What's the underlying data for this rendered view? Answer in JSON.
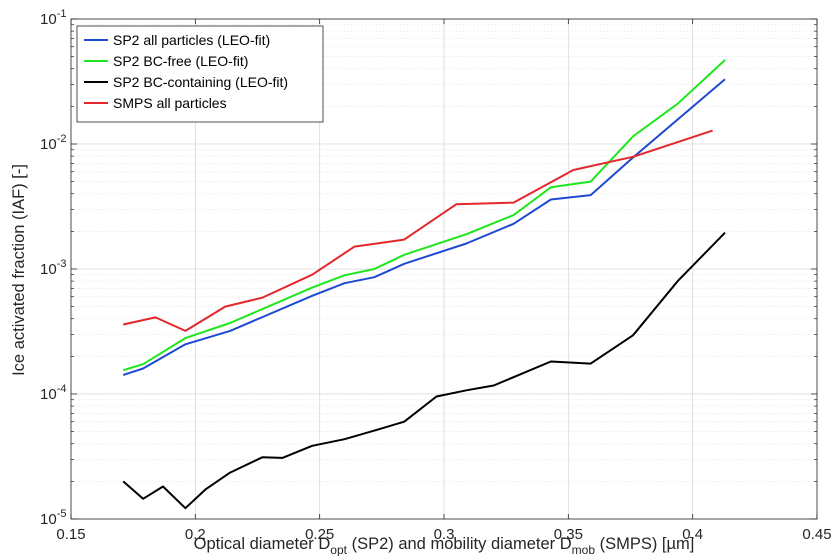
{
  "chart_data": {
    "type": "line",
    "title": "",
    "xlabel": {
      "pre": "Optical diameter D",
      "sub1": "opt",
      "mid": " (SP2) and mobility diameter D",
      "sub2": "mob",
      "post": " (SMPS) [µm]"
    },
    "ylabel": "Ice activated fraction (IAF) [-]",
    "xlim": [
      0.15,
      0.45
    ],
    "ylim": [
      1e-05,
      0.1
    ],
    "yscale": "log",
    "xticks": [
      {
        "v": 0.15,
        "label": "0.15"
      },
      {
        "v": 0.2,
        "label": "0.2"
      },
      {
        "v": 0.25,
        "label": "0.25"
      },
      {
        "v": 0.3,
        "label": "0.3"
      },
      {
        "v": 0.35,
        "label": "0.35"
      },
      {
        "v": 0.4,
        "label": "0.4"
      },
      {
        "v": 0.45,
        "label": "0.45"
      }
    ],
    "yticks": [
      {
        "v": 1e-05,
        "base": "10",
        "exp": "-5"
      },
      {
        "v": 0.0001,
        "base": "10",
        "exp": "-4"
      },
      {
        "v": 0.001,
        "base": "10",
        "exp": "-3"
      },
      {
        "v": 0.01,
        "base": "10",
        "exp": "-2"
      },
      {
        "v": 0.1,
        "base": "10",
        "exp": "-1"
      }
    ],
    "grid": true,
    "minor_grid": true,
    "legend_position": "top-left",
    "series": [
      {
        "name": "SP2 all particles (LEO-fit)",
        "color": "#1f49d1",
        "x": [
          0.171,
          0.179,
          0.196,
          0.214,
          0.247,
          0.26,
          0.272,
          0.284,
          0.309,
          0.328,
          0.343,
          0.359,
          0.376,
          0.413
        ],
        "y": [
          0.000142,
          0.00016,
          0.00025,
          0.00032,
          0.00061,
          0.00077,
          0.00086,
          0.0011,
          0.0016,
          0.0023,
          0.0036,
          0.0039,
          0.0078,
          0.033
        ]
      },
      {
        "name": "SP2 BC-free (LEO-fit)",
        "color": "#1ee61e",
        "x": [
          0.171,
          0.179,
          0.196,
          0.214,
          0.247,
          0.26,
          0.272,
          0.284,
          0.309,
          0.328,
          0.343,
          0.359,
          0.376,
          0.394,
          0.413
        ],
        "y": [
          0.000155,
          0.000173,
          0.00028,
          0.00037,
          0.00071,
          0.00089,
          0.001,
          0.0013,
          0.0019,
          0.0027,
          0.0045,
          0.005,
          0.0115,
          0.021,
          0.047
        ]
      },
      {
        "name": "SP2 BC-containing (LEO-fit)",
        "color": "#000000",
        "x": [
          0.171,
          0.179,
          0.187,
          0.196,
          0.204,
          0.214,
          0.227,
          0.235,
          0.247,
          0.26,
          0.272,
          0.284,
          0.297,
          0.309,
          0.32,
          0.343,
          0.359,
          0.376,
          0.394,
          0.413
        ],
        "y": [
          2e-05,
          1.45e-05,
          1.82e-05,
          1.22e-05,
          1.72e-05,
          2.35e-05,
          3.12e-05,
          3.08e-05,
          3.85e-05,
          4.35e-05,
          5.1e-05,
          6e-05,
          9.55e-05,
          0.000107,
          0.000117,
          0.000182,
          0.000175,
          0.000295,
          0.0008,
          0.00195
        ]
      },
      {
        "name": "SMPS all particles",
        "color": "#e3282b",
        "x": [
          0.171,
          0.184,
          0.196,
          0.212,
          0.227,
          0.247,
          0.264,
          0.284,
          0.305,
          0.328,
          0.352,
          0.376,
          0.408
        ],
        "y": [
          0.00036,
          0.00041,
          0.00032,
          0.0005,
          0.00059,
          0.0009,
          0.00151,
          0.00172,
          0.0033,
          0.0034,
          0.0062,
          0.0079,
          0.0128
        ]
      }
    ]
  }
}
